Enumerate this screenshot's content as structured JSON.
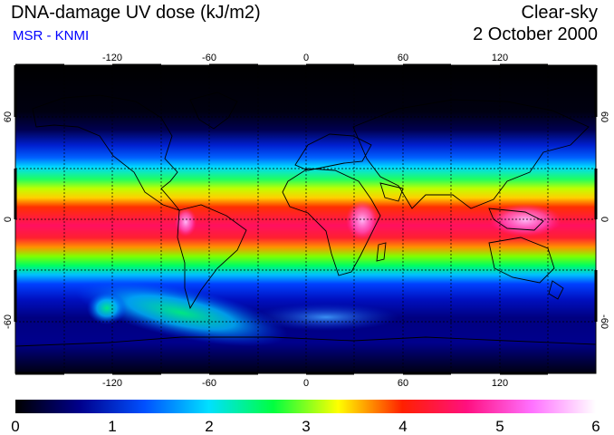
{
  "header": {
    "title": "DNA-damage UV dose (kJ/m2)",
    "subtitle": "MSR - KNMI",
    "sky_condition": "Clear-sky",
    "date": "2 October 2000"
  },
  "map": {
    "projection": "equirectangular",
    "longitude_ticks": [
      "-120",
      "-60",
      "0",
      "60",
      "120"
    ],
    "latitude_ticks": [
      "60",
      "0",
      "-60"
    ],
    "gridlines": "dashed every 30°",
    "coastlines": true
  },
  "legend": {
    "ticks": [
      "0",
      "1",
      "2",
      "3",
      "4",
      "5",
      "6"
    ],
    "colors": [
      "#000000",
      "#00008c",
      "#0050ff",
      "#00e0ff",
      "#00ff40",
      "#ffff00",
      "#ff2000",
      "#ff1080",
      "#ff70ff",
      "#ffffff"
    ]
  }
}
